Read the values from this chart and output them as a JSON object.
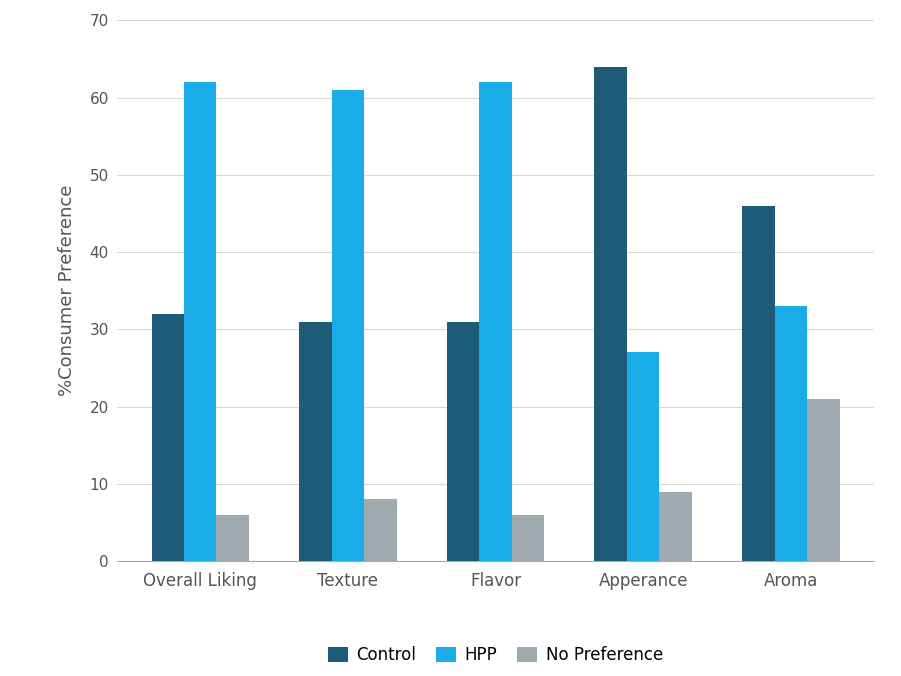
{
  "categories": [
    "Overall Liking",
    "Texture",
    "Flavor",
    "Apperance",
    "Aroma"
  ],
  "series": {
    "Control": [
      32,
      31,
      31,
      64,
      46
    ],
    "HPP": [
      62,
      61,
      62,
      27,
      33
    ],
    "No Preference": [
      6,
      8,
      6,
      9,
      21
    ]
  },
  "colors": {
    "Control": "#1F5C7A",
    "HPP": "#1AACE8",
    "No Preference": "#9EA9B0"
  },
  "ylabel": "%Consumer Preference",
  "ylim": [
    0,
    70
  ],
  "yticks": [
    0,
    10,
    20,
    30,
    40,
    50,
    60,
    70
  ],
  "background_color": "#FFFFFF",
  "legend_labels": [
    "Control",
    "HPP",
    "No Preference"
  ],
  "bar_width": 0.22,
  "grid": true
}
